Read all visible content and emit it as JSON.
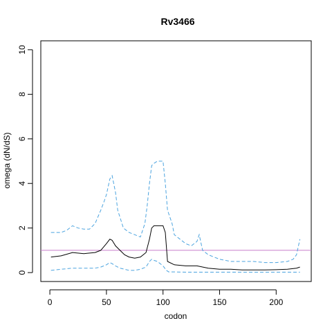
{
  "chart_data": {
    "type": "line",
    "title": "Rv3466",
    "xlabel": "codon",
    "ylabel": "omega (dN/dS)",
    "xlim": [
      -8,
      231
    ],
    "ylim": [
      -0.4,
      10.4
    ],
    "xticks": [
      0,
      50,
      100,
      150,
      200
    ],
    "yticks": [
      0,
      2,
      4,
      6,
      8,
      10
    ],
    "reference_line": {
      "y": 1,
      "color": "#C77CCB"
    },
    "series": [
      {
        "role": "estimate",
        "style": "solid",
        "color": "#000000",
        "x": [
          1,
          10,
          20,
          30,
          40,
          45,
          50,
          53,
          55,
          58,
          62,
          66,
          70,
          75,
          80,
          85,
          88,
          90,
          92,
          95,
          100,
          102,
          104,
          110,
          120,
          130,
          140,
          150,
          160,
          170,
          180,
          190,
          200,
          210,
          218,
          221
        ],
        "y": [
          0.7,
          0.75,
          0.9,
          0.85,
          0.9,
          1.0,
          1.3,
          1.5,
          1.45,
          1.2,
          1.0,
          0.8,
          0.7,
          0.65,
          0.7,
          0.9,
          1.5,
          2.0,
          2.1,
          2.1,
          2.1,
          1.8,
          0.5,
          0.35,
          0.3,
          0.3,
          0.2,
          0.15,
          0.15,
          0.12,
          0.12,
          0.12,
          0.13,
          0.15,
          0.2,
          0.25
        ]
      },
      {
        "role": "upper",
        "style": "dashed",
        "color": "#4AA3DF",
        "x": [
          1,
          10,
          15,
          20,
          25,
          30,
          35,
          40,
          45,
          48,
          50,
          53,
          55,
          58,
          60,
          65,
          70,
          75,
          80,
          84,
          86,
          88,
          90,
          92,
          95,
          100,
          102,
          104,
          108,
          110,
          115,
          120,
          125,
          130,
          132,
          135,
          140,
          145,
          150,
          160,
          170,
          180,
          190,
          200,
          210,
          215,
          218,
          221
        ],
        "y": [
          1.8,
          1.8,
          1.9,
          2.1,
          2.0,
          1.95,
          1.95,
          2.2,
          2.8,
          3.2,
          3.5,
          4.2,
          4.35,
          3.6,
          2.8,
          2.0,
          1.8,
          1.7,
          1.6,
          2.2,
          3.0,
          4.0,
          4.8,
          4.9,
          5.0,
          5.0,
          4.0,
          2.8,
          2.2,
          1.7,
          1.5,
          1.3,
          1.2,
          1.4,
          1.7,
          1.0,
          0.8,
          0.7,
          0.6,
          0.5,
          0.5,
          0.5,
          0.45,
          0.45,
          0.5,
          0.6,
          0.8,
          1.5
        ]
      },
      {
        "role": "lower",
        "style": "dashed",
        "color": "#4AA3DF",
        "x": [
          1,
          10,
          20,
          30,
          40,
          45,
          50,
          53,
          55,
          58,
          62,
          66,
          70,
          75,
          80,
          85,
          88,
          90,
          92,
          95,
          100,
          103,
          105,
          110,
          120,
          130,
          140,
          150,
          160,
          170,
          180,
          190,
          200,
          210,
          218,
          221
        ],
        "y": [
          0.1,
          0.15,
          0.2,
          0.2,
          0.2,
          0.25,
          0.35,
          0.45,
          0.4,
          0.3,
          0.2,
          0.15,
          0.1,
          0.1,
          0.15,
          0.25,
          0.5,
          0.6,
          0.55,
          0.5,
          0.3,
          0.1,
          0.03,
          0.03,
          0.02,
          0.02,
          0.02,
          0.02,
          0.02,
          0.02,
          0.02,
          0.02,
          0.02,
          0.02,
          0.02,
          0.02
        ]
      }
    ]
  }
}
